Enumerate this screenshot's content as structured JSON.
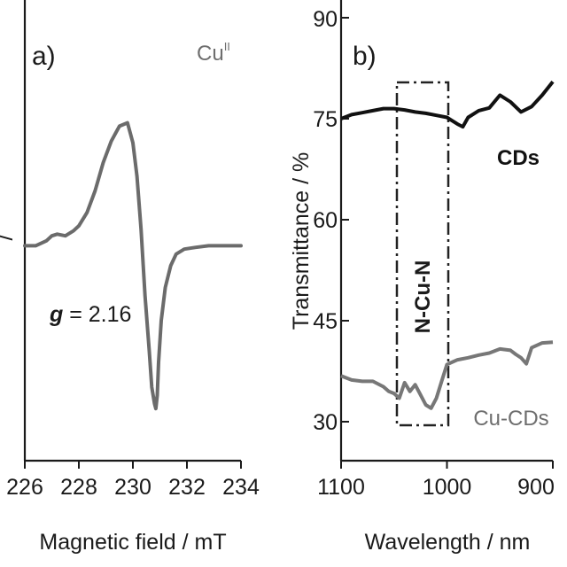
{
  "chart_data": [
    {
      "panel": "a)",
      "type": "line",
      "annotation_species": "Cu",
      "annotation_species_sup": "II",
      "annotation_g_symbol": "g",
      "annotation_g_value": " = 2.16",
      "xlabel": "Magnetic field / mT",
      "ylabel": "/",
      "xlim": [
        226,
        234
      ],
      "ylim": [
        -1.0,
        0.85
      ],
      "xticks": [
        226,
        228,
        230,
        232,
        234
      ],
      "color": "#6b6b6b",
      "series": [
        {
          "x": [
            226.0,
            226.4,
            226.8,
            227.0,
            227.2,
            227.5,
            227.8,
            228.0,
            228.3,
            228.6,
            228.9,
            229.2,
            229.5,
            229.8,
            230.0,
            230.15,
            230.3,
            230.45,
            230.6,
            230.7,
            230.8,
            230.85,
            230.9,
            230.95,
            231.05,
            231.2,
            231.4,
            231.6,
            231.9,
            232.3,
            232.8,
            233.3,
            234.0
          ],
          "y": [
            0.0,
            0.0,
            0.03,
            0.06,
            0.07,
            0.06,
            0.09,
            0.12,
            0.2,
            0.33,
            0.5,
            0.63,
            0.72,
            0.74,
            0.62,
            0.42,
            0.1,
            -0.3,
            -0.62,
            -0.85,
            -0.95,
            -0.98,
            -0.9,
            -0.7,
            -0.45,
            -0.25,
            -0.12,
            -0.05,
            -0.02,
            -0.01,
            0.0,
            0.0,
            0.0
          ]
        }
      ]
    },
    {
      "panel": "b)",
      "type": "line",
      "xlabel": "Wavelength / nm",
      "ylabel": "Transmittance / %",
      "xlim": [
        1100,
        900
      ],
      "ylim": [
        28,
        90
      ],
      "xticks": [
        1100,
        1000,
        900
      ],
      "yticks": [
        30,
        45,
        60,
        75,
        90
      ],
      "box_label": "N-Cu-N",
      "series": [
        {
          "name": "CDs",
          "color": "#111111",
          "x": [
            1100,
            1090,
            1080,
            1070,
            1060,
            1050,
            1040,
            1030,
            1020,
            1010,
            1000,
            990,
            985,
            980,
            970,
            960,
            950,
            940,
            930,
            920,
            910,
            900
          ],
          "y": [
            75,
            75.6,
            75.9,
            76.2,
            76.5,
            76.5,
            76.3,
            76.0,
            75.8,
            75.5,
            75.2,
            74.2,
            73.8,
            75.2,
            76.2,
            76.6,
            78.5,
            77.5,
            76.0,
            76.8,
            78.5,
            80.5
          ]
        },
        {
          "name": "Cu-CDs",
          "color": "#777777",
          "x": [
            1100,
            1090,
            1080,
            1070,
            1060,
            1055,
            1050,
            1045,
            1040,
            1035,
            1030,
            1025,
            1020,
            1015,
            1010,
            1005,
            1000,
            990,
            980,
            970,
            960,
            950,
            940,
            935,
            930,
            925,
            920,
            910,
            900
          ],
          "y": [
            36.8,
            36.2,
            36.0,
            36.0,
            35.2,
            34.5,
            34.2,
            33.5,
            35.8,
            34.5,
            35.5,
            34.0,
            32.5,
            32.0,
            33.5,
            36.0,
            38.5,
            39.2,
            39.5,
            39.9,
            40.2,
            40.8,
            40.6,
            40.0,
            39.5,
            38.6,
            41.0,
            41.7,
            41.8
          ]
        }
      ]
    }
  ]
}
